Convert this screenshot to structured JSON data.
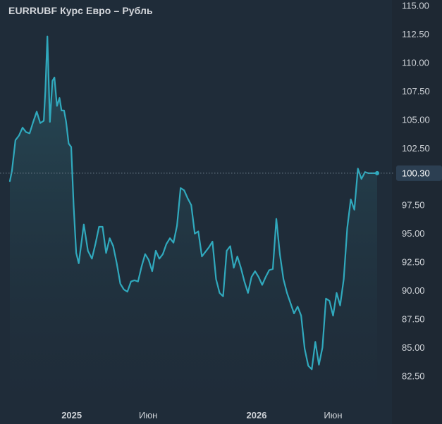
{
  "chart_data": {
    "type": "area",
    "title": "EURRUBF Курс Евро – Рубль",
    "ylim": [
      80,
      115
    ],
    "yticks": [
      82.5,
      85,
      87.5,
      90,
      92.5,
      95,
      97.5,
      100,
      102.5,
      105,
      107.5,
      110,
      112.5,
      115
    ],
    "ytick_labels": [
      "82.50",
      "85.00",
      "87.50",
      "90.00",
      "92.50",
      "95.00",
      "97.50",
      "100.00",
      "102.50",
      "105.00",
      "107.50",
      "110.00",
      "112.50",
      "115.00"
    ],
    "xlim": [
      "2024-09-01",
      "2026-08-31"
    ],
    "xticks": [
      {
        "date": "2025-01-01",
        "label": "2025",
        "bold": true
      },
      {
        "date": "2025-06-01",
        "label": "Июн",
        "bold": false
      },
      {
        "date": "2026-01-01",
        "label": "2026",
        "bold": true
      },
      {
        "date": "2026-06-01",
        "label": "Июн",
        "bold": false
      }
    ],
    "last_value": 100.3,
    "last_value_label": "100.30",
    "grid": false,
    "colors": {
      "background": "#1e2833",
      "plot_background": "#1f2c39",
      "line": "#30a9bd",
      "area_top": "#2b5966",
      "area_bottom": "#1f2c39",
      "badge": "#2c3f52",
      "text": "#cfd3d8"
    },
    "series": [
      {
        "x": [
          "2024-09-01",
          "2024-09-05",
          "2024-09-12",
          "2024-09-19",
          "2024-09-26",
          "2024-10-03",
          "2024-10-10",
          "2024-10-17",
          "2024-10-24",
          "2024-10-31",
          "2024-11-07",
          "2024-11-10",
          "2024-11-14",
          "2024-11-19",
          "2024-11-24",
          "2024-11-28",
          "2024-12-03",
          "2024-12-08",
          "2024-12-12",
          "2024-12-17",
          "2024-12-21",
          "2024-12-26",
          "2024-12-31",
          "2025-01-05",
          "2025-01-10",
          "2025-01-15",
          "2025-01-25",
          "2025-02-02",
          "2025-02-10",
          "2025-02-17",
          "2025-02-24",
          "2025-03-03",
          "2025-03-10",
          "2025-03-17",
          "2025-03-24",
          "2025-03-31",
          "2025-04-07",
          "2025-04-14",
          "2025-04-21",
          "2025-04-28",
          "2025-05-05",
          "2025-05-12",
          "2025-05-19",
          "2025-05-26",
          "2025-06-02",
          "2025-06-09",
          "2025-06-16",
          "2025-06-23",
          "2025-06-30",
          "2025-07-07",
          "2025-07-14",
          "2025-07-21",
          "2025-07-28",
          "2025-08-04",
          "2025-08-11",
          "2025-08-18",
          "2025-08-25",
          "2025-09-01",
          "2025-09-08",
          "2025-09-15",
          "2025-09-22",
          "2025-09-29",
          "2025-10-06",
          "2025-10-13",
          "2025-10-20",
          "2025-10-27",
          "2025-11-03",
          "2025-11-10",
          "2025-11-17",
          "2025-11-24",
          "2025-12-01",
          "2025-12-08",
          "2025-12-15",
          "2025-12-22",
          "2025-12-29",
          "2026-01-05",
          "2026-01-12",
          "2026-01-19",
          "2026-01-26",
          "2026-02-02",
          "2026-02-09",
          "2026-02-16",
          "2026-02-23",
          "2026-03-02",
          "2026-03-09",
          "2026-03-16",
          "2026-03-23",
          "2026-03-30",
          "2026-04-06",
          "2026-04-13",
          "2026-04-20",
          "2026-04-27",
          "2026-05-04",
          "2026-05-11",
          "2026-05-18",
          "2026-05-25",
          "2026-06-01",
          "2026-06-08",
          "2026-06-15",
          "2026-06-22",
          "2026-06-29",
          "2026-07-06",
          "2026-07-13",
          "2026-07-20",
          "2026-07-27",
          "2026-08-03",
          "2026-08-10",
          "2026-08-17",
          "2026-08-24",
          "2026-08-27"
        ],
        "values": [
          99.6,
          100.5,
          103.2,
          103.6,
          104.3,
          103.9,
          103.8,
          104.8,
          105.7,
          104.7,
          104.9,
          107.5,
          112.3,
          104.8,
          108.4,
          108.7,
          106.2,
          106.9,
          105.8,
          105.8,
          104.8,
          102.9,
          102.6,
          97.4,
          93.3,
          92.4,
          95.8,
          93.5,
          92.8,
          94.1,
          95.6,
          95.6,
          93.3,
          94.6,
          93.9,
          92.4,
          90.6,
          90.1,
          89.9,
          90.8,
          90.9,
          90.8,
          92.1,
          93.2,
          92.7,
          91.7,
          93.5,
          92.8,
          93.2,
          94.1,
          94.6,
          94.2,
          95.7,
          99.0,
          98.8,
          98.1,
          97.5,
          95.0,
          95.2,
          93.0,
          93.4,
          93.8,
          94.3,
          91.0,
          89.8,
          89.5,
          93.5,
          93.9,
          92.0,
          93.0,
          92.0,
          90.8,
          89.8,
          91.2,
          91.7,
          91.2,
          90.5,
          91.2,
          91.8,
          91.9,
          96.3,
          93.2,
          91.0,
          89.8,
          88.9,
          88.0,
          88.6,
          87.8,
          84.9,
          83.4,
          83.1,
          85.5,
          83.5,
          85.0,
          89.3,
          89.1,
          87.8,
          89.8,
          88.7,
          91.0,
          95.5,
          98.0,
          97.1,
          100.7,
          99.8,
          100.4,
          100.3,
          100.3,
          100.3,
          100.3
        ]
      }
    ]
  }
}
